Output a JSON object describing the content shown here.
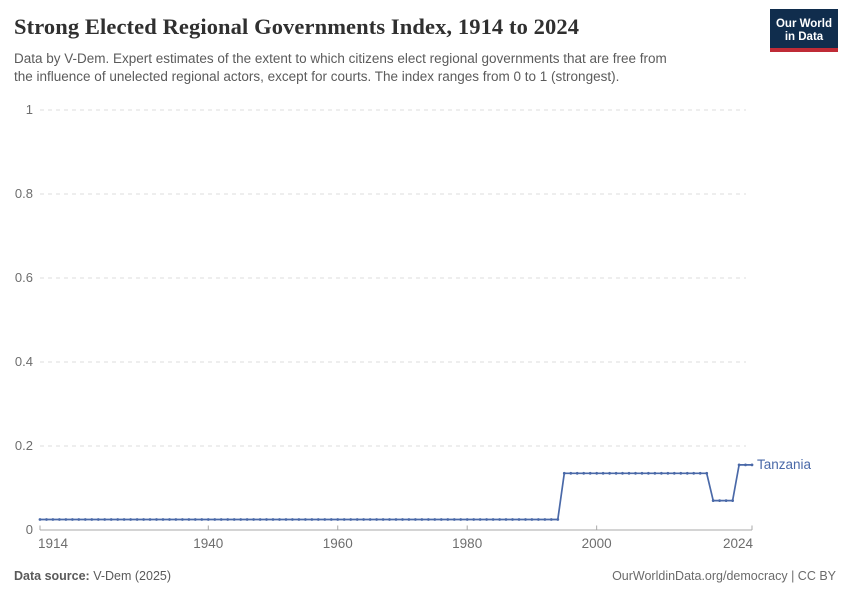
{
  "header": {
    "title": "Strong Elected Regional Governments Index, 1914 to 2024",
    "subtitle_line1": "Data by V-Dem. Expert estimates of the extent to which citizens elect regional governments that are free from",
    "subtitle_line2": "the influence of unelected regional actors, except for courts. The index ranges from 0 to 1 (strongest)."
  },
  "logo": {
    "line1": "Our World",
    "line2": "in Data",
    "bg_color": "#102d4d",
    "accent_color": "#bf2b36",
    "text_color": "#ffffff"
  },
  "chart_data": {
    "type": "line",
    "title": "Strong Elected Regional Governments Index, 1914 to 2024",
    "xlabel": "",
    "ylabel": "",
    "x_range": [
      1914,
      2024
    ],
    "ylim": [
      0,
      1
    ],
    "x_ticks": [
      1914,
      1940,
      1960,
      1980,
      2000,
      2024
    ],
    "y_ticks": [
      0,
      0.2,
      0.4,
      0.6,
      0.8,
      1
    ],
    "grid": "horizontal dashed gridlines",
    "legend_position": "end-of-line label",
    "series": [
      {
        "name": "Tanzania",
        "color": "#4a69a8",
        "marker": "point-per-year",
        "segments": [
          {
            "start_year": 1914,
            "end_year": 1994,
            "value": 0.025
          },
          {
            "start_year": 1995,
            "end_year": 2017,
            "value": 0.135
          },
          {
            "start_year": 2018,
            "end_year": 2021,
            "value": 0.07
          },
          {
            "start_year": 2022,
            "end_year": 2024,
            "value": 0.155
          }
        ]
      }
    ]
  },
  "footer": {
    "source_label": "Data source:",
    "source_value": "V-Dem (2025)",
    "credit": "OurWorldinData.org/democracy | CC BY"
  },
  "colors": {
    "axis_line": "#a8a8a8",
    "gridline": "#dcdcdc",
    "tick_label": "#6e6e6e"
  }
}
